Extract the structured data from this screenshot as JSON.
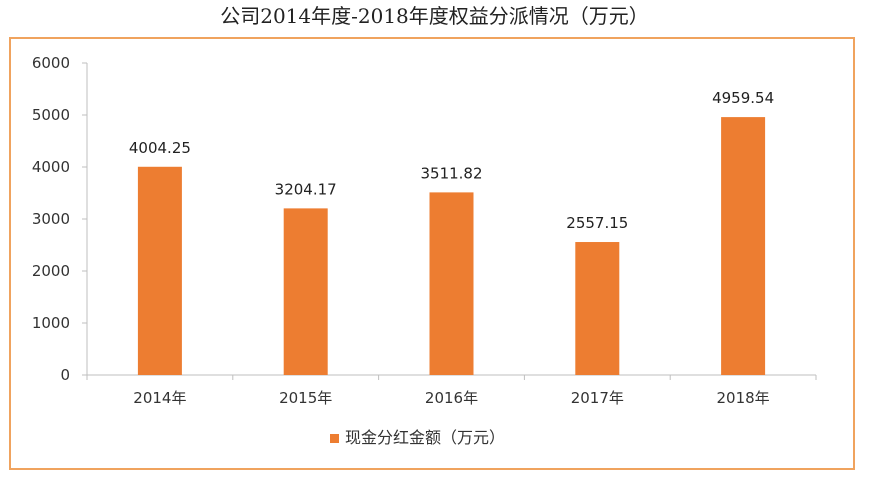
{
  "chart_data": {
    "type": "bar",
    "title": "公司2014年度-2018年度权益分派情况（万元）",
    "categories": [
      "2014年",
      "2015年",
      "2016年",
      "2017年",
      "2018年"
    ],
    "series": [
      {
        "name": "现金分红金额（万元）",
        "values": [
          4004.25,
          3204.17,
          3511.82,
          2557.15,
          4959.54
        ],
        "labels": [
          "4004.25",
          "3204.17",
          "3511.82",
          "2557.15",
          "4959.54"
        ],
        "color": "#ed7d31"
      }
    ],
    "yticks": [
      "0",
      "1000",
      "2000",
      "3000",
      "4000",
      "5000",
      "6000"
    ],
    "ylim": [
      0,
      6000
    ],
    "xlabel": "",
    "ylabel": "",
    "grid": false,
    "legend_position": "bottom"
  },
  "colors": {
    "bar": "#ed7d31",
    "frame": "#f0a35e",
    "axis": "#bfbfbf"
  }
}
